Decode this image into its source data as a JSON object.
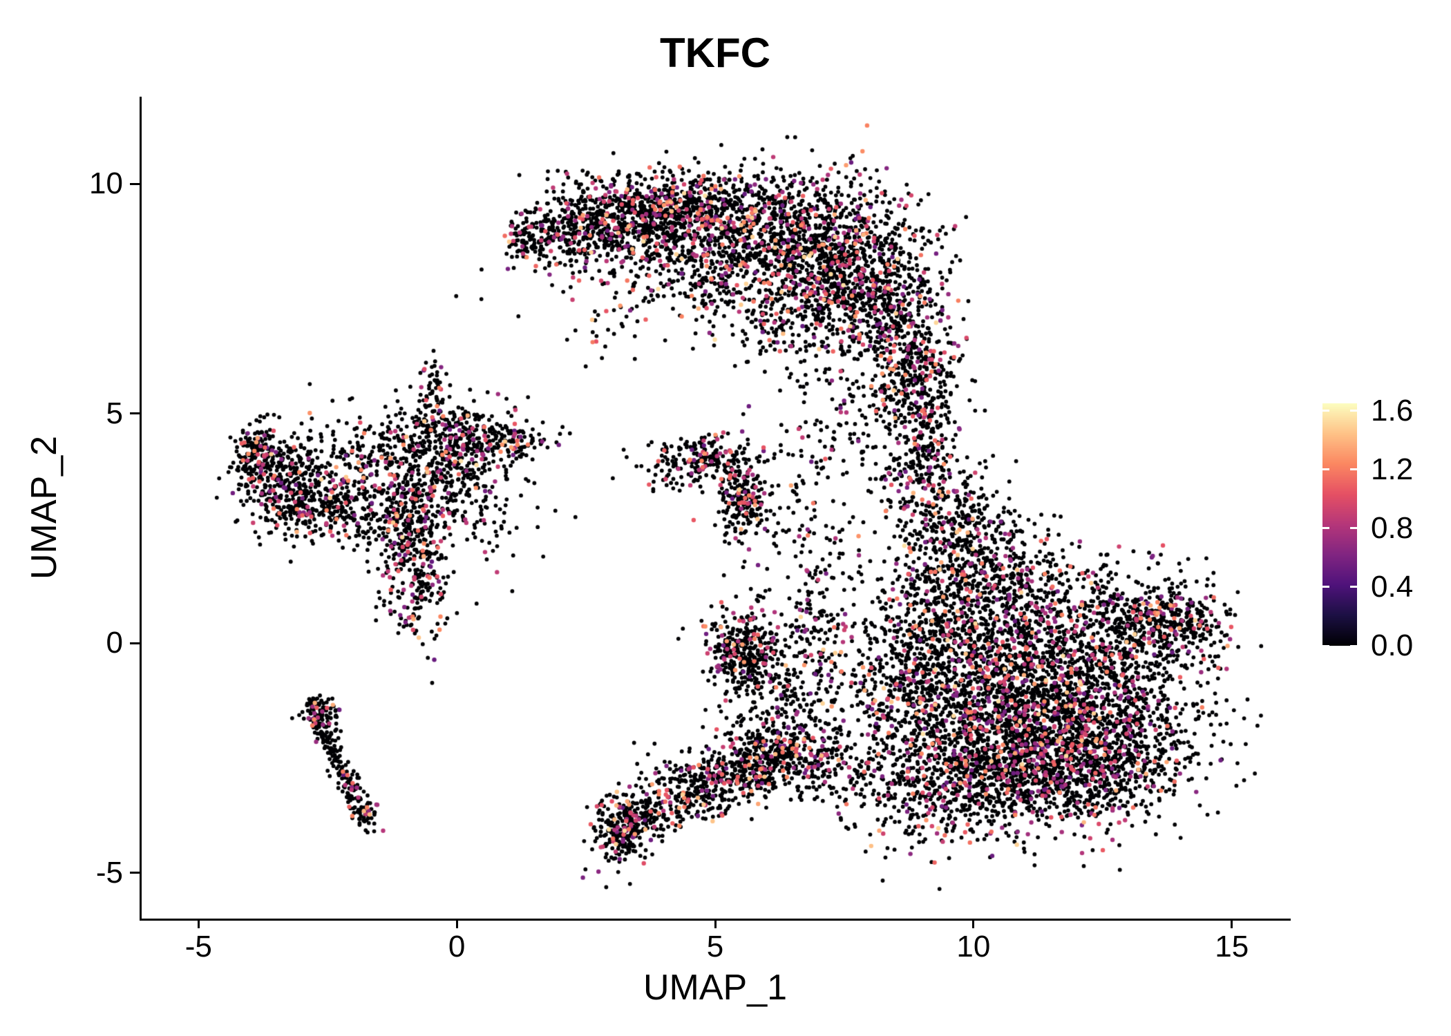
{
  "page": {
    "background": "#ffffff"
  },
  "chart_data": {
    "type": "scatter",
    "title": "TKFC",
    "xlabel": "UMAP_1",
    "ylabel": "UMAP_2",
    "xlim": [
      -6.1,
      16.1
    ],
    "ylim": [
      -6.0,
      11.9
    ],
    "x_ticks": [
      -5,
      0,
      5,
      10,
      15
    ],
    "y_ticks": [
      -5,
      0,
      5,
      10
    ],
    "grid": false,
    "axis_color": "#000000",
    "text_color": "#000000",
    "background_color": "#ffffff",
    "seed": 42,
    "point_radius": {
      "zero": 2.9,
      "positive": 3.2
    },
    "legend": {
      "position": "right",
      "ticks": [
        0.0,
        0.4,
        0.8,
        1.2,
        1.6
      ],
      "bar_max": 1.65
    },
    "colormap": {
      "name": "magma",
      "stops": [
        "#000004",
        "#1c1044",
        "#4f127b",
        "#812581",
        "#b5367a",
        "#e55064",
        "#fb8761",
        "#fec287",
        "#fcfdbf"
      ]
    },
    "expression": {
      "zero_fraction": 0.84,
      "bands": [
        {
          "p": 0.6,
          "min": 0.5,
          "max": 0.95
        },
        {
          "p": 0.28,
          "min": 0.95,
          "max": 1.25
        },
        {
          "p": 0.12,
          "min": 1.25,
          "max": 1.55
        }
      ]
    },
    "clusters": [
      {
        "cx": 1.4,
        "cy": 8.85,
        "sx": 0.25,
        "sy": 0.3,
        "n": 80
      },
      {
        "cx": 2.2,
        "cy": 8.8,
        "sx": 0.5,
        "sy": 0.35,
        "n": 180
      },
      {
        "cx": 3.2,
        "cy": 9.3,
        "sx": 0.8,
        "sy": 0.45,
        "n": 500
      },
      {
        "cx": 4.4,
        "cy": 9.4,
        "sx": 0.8,
        "sy": 0.45,
        "n": 450
      },
      {
        "cx": 5.8,
        "cy": 9.0,
        "sx": 1.0,
        "sy": 0.65,
        "n": 700
      },
      {
        "cx": 7.3,
        "cy": 8.4,
        "sx": 0.9,
        "sy": 0.85,
        "n": 900
      },
      {
        "cx": 8.4,
        "cy": 7.2,
        "sx": 0.55,
        "sy": 0.75,
        "n": 450
      },
      {
        "cx": 8.9,
        "cy": 5.9,
        "sx": 0.35,
        "sy": 0.55,
        "n": 180
      },
      {
        "cx": 4.9,
        "cy": 7.9,
        "sx": 0.9,
        "sy": 0.55,
        "n": 140
      },
      {
        "cx": 6.6,
        "cy": 7.1,
        "sx": 0.8,
        "sy": 0.6,
        "n": 220
      },
      {
        "cx": 3.6,
        "cy": 8.3,
        "sx": 1.1,
        "sy": 0.5,
        "n": 120
      },
      {
        "cx": 3.0,
        "cy": 6.9,
        "sx": 0.4,
        "sy": 0.35,
        "n": 30
      },
      {
        "cx": 9.15,
        "cy": 4.7,
        "sx": 0.3,
        "sy": 0.8,
        "n": 160
      },
      {
        "cx": 8.8,
        "cy": 3.6,
        "sx": 0.4,
        "sy": 0.5,
        "n": 120
      },
      {
        "cx": 8.5,
        "cy": 5.2,
        "sx": 0.5,
        "sy": 0.6,
        "n": 70
      },
      {
        "cx": 10.3,
        "cy": -1.6,
        "sx": 1.2,
        "sy": 1.1,
        "n": 1600
      },
      {
        "cx": 12.2,
        "cy": -1.8,
        "sx": 1.1,
        "sy": 0.9,
        "n": 1200
      },
      {
        "cx": 11.3,
        "cy": -2.9,
        "sx": 1.3,
        "sy": 0.6,
        "n": 700
      },
      {
        "cx": 11.6,
        "cy": 0.2,
        "sx": 1.4,
        "sy": 0.8,
        "n": 900
      },
      {
        "cx": 13.7,
        "cy": 0.4,
        "sx": 0.6,
        "sy": 0.45,
        "n": 350
      },
      {
        "cx": 9.3,
        "cy": 0.5,
        "sx": 0.6,
        "sy": 0.9,
        "n": 350
      },
      {
        "cx": 9.7,
        "cy": 2.4,
        "sx": 0.55,
        "sy": 0.8,
        "n": 350
      },
      {
        "cx": 10.6,
        "cy": 1.6,
        "sx": 0.8,
        "sy": 0.5,
        "n": 250
      },
      {
        "cx": 8.6,
        "cy": -1.2,
        "sx": 0.5,
        "sy": 0.8,
        "n": 200
      },
      {
        "cx": 9.0,
        "cy": -3.3,
        "sx": 0.6,
        "sy": 0.6,
        "n": 200
      },
      {
        "cx": -3.3,
        "cy": 3.5,
        "sx": 0.5,
        "sy": 0.5,
        "n": 400
      },
      {
        "cx": -3.9,
        "cy": 4.2,
        "sx": 0.25,
        "sy": 0.3,
        "n": 120
      },
      {
        "cx": -2.6,
        "cy": 2.9,
        "sx": 0.4,
        "sy": 0.35,
        "n": 150
      },
      {
        "cx": -0.6,
        "cy": 3.8,
        "sx": 0.8,
        "sy": 0.7,
        "n": 450
      },
      {
        "cx": 0.1,
        "cy": 4.5,
        "sx": 0.6,
        "sy": 0.4,
        "n": 220
      },
      {
        "cx": -0.8,
        "cy": 1.7,
        "sx": 0.3,
        "sy": 0.8,
        "n": 280
      },
      {
        "cx": -1.3,
        "cy": 2.7,
        "sx": 0.45,
        "sy": 0.4,
        "n": 130
      },
      {
        "cx": -0.2,
        "cy": 2.9,
        "sx": 0.9,
        "sy": 0.7,
        "n": 150
      },
      {
        "cx": 1.2,
        "cy": 4.4,
        "sx": 0.35,
        "sy": 0.2,
        "n": 70
      },
      {
        "cx": -0.45,
        "cy": 5.4,
        "sx": 0.12,
        "sy": 0.45,
        "n": 50
      },
      {
        "cx": -2.0,
        "cy": 3.9,
        "sx": 0.6,
        "sy": 0.5,
        "n": 120
      },
      {
        "line": true,
        "x1": -2.85,
        "y1": -1.25,
        "x2": -1.78,
        "y2": -3.8,
        "jitter": 0.12,
        "n": 200
      },
      {
        "cx": -2.55,
        "cy": -1.6,
        "sx": 0.18,
        "sy": 0.25,
        "n": 60
      },
      {
        "cx": -1.75,
        "cy": -3.7,
        "sx": 0.15,
        "sy": 0.2,
        "n": 40
      },
      {
        "cx": 3.2,
        "cy": -4.05,
        "sx": 0.28,
        "sy": 0.38,
        "n": 260
      },
      {
        "line": true,
        "x1": 3.4,
        "y1": -3.9,
        "x2": 6.6,
        "y2": -2.3,
        "jitter": 0.3,
        "n": 420
      },
      {
        "cx": 5.9,
        "cy": -2.5,
        "sx": 0.6,
        "sy": 0.45,
        "n": 280
      },
      {
        "cx": 7.2,
        "cy": -2.6,
        "sx": 0.5,
        "sy": 0.5,
        "n": 180
      },
      {
        "cx": 4.6,
        "cy": -3.0,
        "sx": 0.45,
        "sy": 0.35,
        "n": 120
      },
      {
        "cx": 5.6,
        "cy": -0.2,
        "sx": 0.3,
        "sy": 0.45,
        "n": 260
      },
      {
        "cx": 5.7,
        "cy": -0.3,
        "sx": 0.6,
        "sy": 0.8,
        "n": 120
      },
      {
        "cx": 7.0,
        "cy": 0.3,
        "sx": 0.4,
        "sy": 1.0,
        "n": 190
      },
      {
        "cx": 6.4,
        "cy": -1.3,
        "sx": 0.5,
        "sy": 0.6,
        "n": 110
      },
      {
        "cx": 7.7,
        "cy": 5.0,
        "sx": 0.8,
        "sy": 0.7,
        "n": 110
      },
      {
        "cx": 6.6,
        "cy": 3.0,
        "sx": 0.7,
        "sy": 0.9,
        "n": 80
      },
      {
        "cx": 5.55,
        "cy": 3.2,
        "sx": 0.22,
        "sy": 0.5,
        "n": 230
      },
      {
        "cx": 4.8,
        "cy": 4.05,
        "sx": 0.35,
        "sy": 0.28,
        "n": 130
      },
      {
        "cx": 4.2,
        "cy": 3.8,
        "sx": 0.45,
        "sy": 0.3,
        "n": 60
      }
    ]
  }
}
